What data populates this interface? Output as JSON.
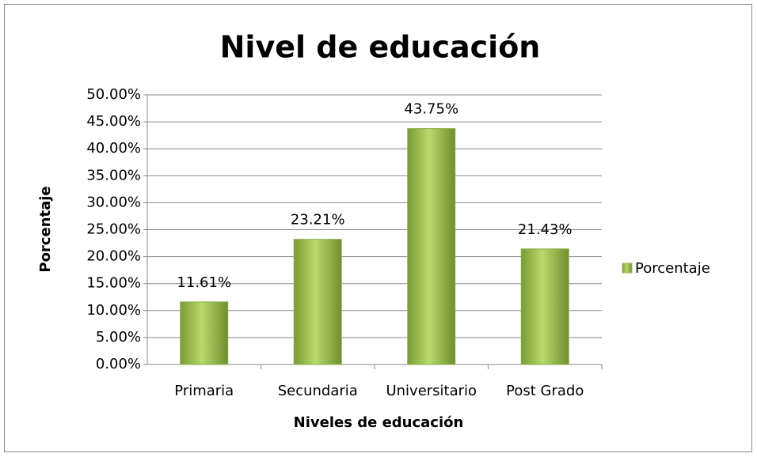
{
  "chart_data": {
    "type": "bar",
    "title": "Nivel de educación",
    "x_label": "Niveles de educación",
    "y_label": "Porcentaje",
    "categories": [
      "Primaria",
      "Secundaria",
      "Universitario",
      "Post Grado"
    ],
    "series": [
      {
        "name": "Porcentaje",
        "color": "#9bbb59",
        "values": [
          11.61,
          23.21,
          43.75,
          21.43
        ],
        "value_labels": [
          "11.61%",
          "23.21%",
          "43.75%",
          "21.43%"
        ]
      }
    ],
    "ylim": [
      0,
      50
    ],
    "yticks": [
      {
        "value": 0,
        "label": "0.00%"
      },
      {
        "value": 5,
        "label": "5.00%"
      },
      {
        "value": 10,
        "label": "10.00%"
      },
      {
        "value": 15,
        "label": "15.00%"
      },
      {
        "value": 20,
        "label": "20.00%"
      },
      {
        "value": 25,
        "label": "25.00%"
      },
      {
        "value": 30,
        "label": "30.00%"
      },
      {
        "value": 35,
        "label": "35.00%"
      },
      {
        "value": 40,
        "label": "40.00%"
      },
      {
        "value": 45,
        "label": "45.00%"
      },
      {
        "value": 50,
        "label": "50.00%"
      }
    ],
    "grid": true,
    "legend": "right"
  }
}
